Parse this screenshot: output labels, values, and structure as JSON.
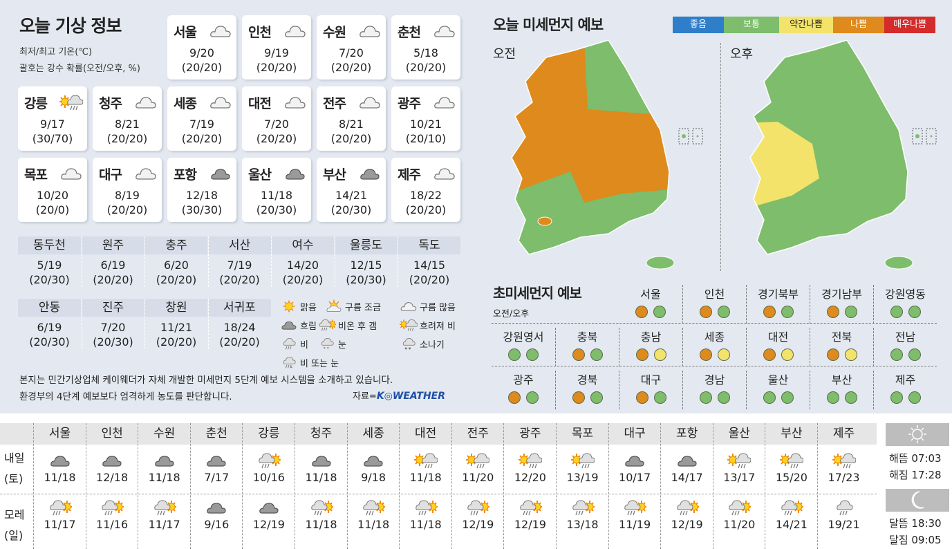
{
  "today": {
    "title": "오늘 기상 정보",
    "subtitle1": "최저/최고 기온(℃)",
    "subtitle2": "괄호는 강수 확률(오전/오후, %)",
    "cities": [
      {
        "name": "서울",
        "icon": "cloud-outline",
        "temp": "9/20",
        "pop": "(20/20)"
      },
      {
        "name": "인천",
        "icon": "cloud-outline",
        "temp": "9/19",
        "pop": "(20/20)"
      },
      {
        "name": "수원",
        "icon": "cloud-outline",
        "temp": "7/20",
        "pop": "(20/20)"
      },
      {
        "name": "춘천",
        "icon": "cloud-outline",
        "temp": "5/18",
        "pop": "(20/20)"
      },
      {
        "name": "강릉",
        "icon": "sun-then-rain",
        "temp": "9/17",
        "pop": "(30/70)"
      },
      {
        "name": "청주",
        "icon": "cloud-outline",
        "temp": "8/21",
        "pop": "(20/20)"
      },
      {
        "name": "세종",
        "icon": "cloud-outline",
        "temp": "7/19",
        "pop": "(20/20)"
      },
      {
        "name": "대전",
        "icon": "cloud-outline",
        "temp": "7/20",
        "pop": "(20/20)"
      },
      {
        "name": "전주",
        "icon": "cloud-outline",
        "temp": "8/21",
        "pop": "(20/20)"
      },
      {
        "name": "광주",
        "icon": "cloud-outline",
        "temp": "10/21",
        "pop": "(20/10)"
      },
      {
        "name": "목포",
        "icon": "cloud-outline",
        "temp": "10/20",
        "pop": "(20/0)"
      },
      {
        "name": "대구",
        "icon": "cloud-outline",
        "temp": "8/19",
        "pop": "(20/20)"
      },
      {
        "name": "포항",
        "icon": "cloud-gray",
        "temp": "12/18",
        "pop": "(30/30)"
      },
      {
        "name": "울산",
        "icon": "cloud-gray",
        "temp": "11/18",
        "pop": "(20/30)"
      },
      {
        "name": "부산",
        "icon": "cloud-gray",
        "temp": "14/21",
        "pop": "(20/30)"
      },
      {
        "name": "제주",
        "icon": "cloud-outline",
        "temp": "18/22",
        "pop": "(20/20)"
      }
    ],
    "small": [
      {
        "name": "동두천",
        "temp": "5/19",
        "pop": "(20/30)"
      },
      {
        "name": "원주",
        "temp": "6/19",
        "pop": "(20/20)"
      },
      {
        "name": "충주",
        "temp": "6/20",
        "pop": "(20/20)"
      },
      {
        "name": "서산",
        "temp": "7/19",
        "pop": "(20/20)"
      },
      {
        "name": "여수",
        "temp": "14/20",
        "pop": "(20/20)"
      },
      {
        "name": "울릉도",
        "temp": "12/15",
        "pop": "(20/30)"
      },
      {
        "name": "독도",
        "temp": "14/15",
        "pop": "(20/20)"
      },
      {
        "name": "안동",
        "temp": "6/19",
        "pop": "(20/30)"
      },
      {
        "name": "진주",
        "temp": "7/20",
        "pop": "(20/30)"
      },
      {
        "name": "창원",
        "temp": "11/21",
        "pop": "(20/20)"
      },
      {
        "name": "서귀포",
        "temp": "18/24",
        "pop": "(20/20)"
      }
    ],
    "legend": [
      {
        "icon": "sun",
        "label": "맑음"
      },
      {
        "icon": "sun-cloud",
        "label": "구름 조금"
      },
      {
        "icon": "cloud-outline",
        "label": "구름 많음"
      },
      {
        "icon": "cloud-gray",
        "label": "흐림"
      },
      {
        "icon": "rain-then-clear",
        "label": "비온 후 갬"
      },
      {
        "icon": "sun-then-rain",
        "label": "흐려져 비"
      },
      {
        "icon": "rain",
        "label": "비"
      },
      {
        "icon": "snow",
        "label": "눈"
      },
      {
        "icon": "shower",
        "label": "소나기"
      },
      {
        "icon": "sleet",
        "label": "비 또는 눈"
      }
    ],
    "footer1": "본지는 민간기상업체 케이웨더가 자체 개발한 미세먼지 5단계 예보 시스템을 소개하고 있습니다.",
    "footer2": "환경부의 4단계 예보보다 엄격하게 농도를 판단합니다.",
    "source_label": "자료=",
    "source_logo": "K◎WEATHER"
  },
  "dust": {
    "title": "오늘 미세먼지 예보",
    "am": "오전",
    "pm": "오후",
    "levels": [
      {
        "label": "좋음",
        "color": "#2f7ec9"
      },
      {
        "label": "보통",
        "color": "#7dbd6b"
      },
      {
        "label": "약간나쁨",
        "color": "#f3e36a"
      },
      {
        "label": "나쁨",
        "color": "#de8a1c"
      },
      {
        "label": "매우나쁨",
        "color": "#d42b2b"
      }
    ]
  },
  "pm25": {
    "title": "초미세먼지 예보",
    "subtitle": "오전/오후",
    "regions": [
      {
        "name": "서울",
        "am": "나쁨",
        "pm": "보통"
      },
      {
        "name": "인천",
        "am": "나쁨",
        "pm": "보통"
      },
      {
        "name": "경기북부",
        "am": "나쁨",
        "pm": "보통"
      },
      {
        "name": "경기남부",
        "am": "나쁨",
        "pm": "보통"
      },
      {
        "name": "강원영동",
        "am": "보통",
        "pm": "보통"
      },
      {
        "name": "강원영서",
        "am": "보통",
        "pm": "보통"
      },
      {
        "name": "충북",
        "am": "나쁨",
        "pm": "보통"
      },
      {
        "name": "충남",
        "am": "나쁨",
        "pm": "약간나쁨"
      },
      {
        "name": "세종",
        "am": "나쁨",
        "pm": "약간나쁨"
      },
      {
        "name": "대전",
        "am": "나쁨",
        "pm": "약간나쁨"
      },
      {
        "name": "전북",
        "am": "나쁨",
        "pm": "약간나쁨"
      },
      {
        "name": "전남",
        "am": "보통",
        "pm": "보통"
      },
      {
        "name": "광주",
        "am": "나쁨",
        "pm": "보통"
      },
      {
        "name": "경북",
        "am": "나쁨",
        "pm": "보통"
      },
      {
        "name": "대구",
        "am": "나쁨",
        "pm": "보통"
      },
      {
        "name": "경남",
        "am": "보통",
        "pm": "보통"
      },
      {
        "name": "울산",
        "am": "보통",
        "pm": "보통"
      },
      {
        "name": "부산",
        "am": "보통",
        "pm": "보통"
      },
      {
        "name": "제주",
        "am": "보통",
        "pm": "보통"
      }
    ]
  },
  "forecast": {
    "day1": [
      "내일",
      "(토)"
    ],
    "day2": [
      "모레",
      "(일)"
    ],
    "cities": [
      {
        "name": "서울",
        "d1": {
          "icon": "cloud-gray",
          "temp": "11/18"
        },
        "d2": {
          "icon": "rain-then-clear",
          "temp": "11/17"
        }
      },
      {
        "name": "인천",
        "d1": {
          "icon": "cloud-gray",
          "temp": "12/18"
        },
        "d2": {
          "icon": "rain-then-clear",
          "temp": "11/16"
        }
      },
      {
        "name": "수원",
        "d1": {
          "icon": "cloud-gray",
          "temp": "11/18"
        },
        "d2": {
          "icon": "rain-then-clear",
          "temp": "11/17"
        }
      },
      {
        "name": "춘천",
        "d1": {
          "icon": "cloud-gray",
          "temp": "7/17"
        },
        "d2": {
          "icon": "cloud-gray",
          "temp": "9/16"
        }
      },
      {
        "name": "강릉",
        "d1": {
          "icon": "rain-then-clear",
          "temp": "10/16"
        },
        "d2": {
          "icon": "cloud-gray",
          "temp": "12/19"
        }
      },
      {
        "name": "청주",
        "d1": {
          "icon": "cloud-gray",
          "temp": "11/18"
        },
        "d2": {
          "icon": "rain-then-clear",
          "temp": "11/18"
        }
      },
      {
        "name": "세종",
        "d1": {
          "icon": "cloud-gray",
          "temp": "9/18"
        },
        "d2": {
          "icon": "rain-then-clear",
          "temp": "11/18"
        }
      },
      {
        "name": "대전",
        "d1": {
          "icon": "sun-then-rain",
          "temp": "11/18"
        },
        "d2": {
          "icon": "rain-then-clear",
          "temp": "11/18"
        }
      },
      {
        "name": "전주",
        "d1": {
          "icon": "sun-then-rain",
          "temp": "11/20"
        },
        "d2": {
          "icon": "rain-then-clear",
          "temp": "12/19"
        }
      },
      {
        "name": "광주",
        "d1": {
          "icon": "sun-then-rain",
          "temp": "12/20"
        },
        "d2": {
          "icon": "rain-then-clear",
          "temp": "12/19"
        }
      },
      {
        "name": "목포",
        "d1": {
          "icon": "sun-then-rain",
          "temp": "13/19"
        },
        "d2": {
          "icon": "rain-then-clear",
          "temp": "13/18"
        }
      },
      {
        "name": "대구",
        "d1": {
          "icon": "cloud-gray",
          "temp": "10/17"
        },
        "d2": {
          "icon": "rain-then-clear",
          "temp": "11/19"
        }
      },
      {
        "name": "포항",
        "d1": {
          "icon": "cloud-gray",
          "temp": "14/17"
        },
        "d2": {
          "icon": "rain-then-clear",
          "temp": "12/19"
        }
      },
      {
        "name": "울산",
        "d1": {
          "icon": "sun-then-rain",
          "temp": "13/17"
        },
        "d2": {
          "icon": "rain-then-clear",
          "temp": "11/20"
        }
      },
      {
        "name": "부산",
        "d1": {
          "icon": "sun-then-rain",
          "temp": "15/20"
        },
        "d2": {
          "icon": "rain-then-clear",
          "temp": "14/21"
        }
      },
      {
        "name": "제주",
        "d1": {
          "icon": "sun-then-rain",
          "temp": "17/23"
        },
        "d2": {
          "icon": "rain",
          "temp": "19/21"
        }
      }
    ]
  },
  "astro": {
    "sunrise": "해뜸 07:03",
    "sunset": "해짐 17:28",
    "moonrise": "달뜸 18:30",
    "moonset": "달짐 09:05"
  }
}
